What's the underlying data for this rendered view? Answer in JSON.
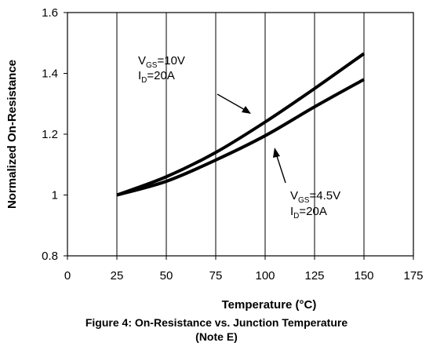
{
  "chart_data": {
    "type": "line",
    "xlabel": "Temperature (°C)",
    "ylabel": "Normalized On-Resistance",
    "xlim": [
      0,
      175
    ],
    "ylim": [
      0.8,
      1.6
    ],
    "x_ticks": [
      "0",
      "25",
      "50",
      "75",
      "100",
      "125",
      "150",
      "175"
    ],
    "y_ticks": [
      "0.8",
      "1",
      "1.2",
      "1.4",
      "1.6"
    ],
    "grid": "vertical",
    "series": [
      {
        "name": "VGS=10V, ID=20A",
        "x": [
          25,
          50,
          75,
          100,
          125,
          150
        ],
        "y": [
          1.0,
          1.06,
          1.14,
          1.24,
          1.35,
          1.465
        ]
      },
      {
        "name": "VGS=4.5V, ID=20A",
        "x": [
          25,
          50,
          75,
          100,
          125,
          150
        ],
        "y": [
          1.0,
          1.045,
          1.115,
          1.195,
          1.29,
          1.38
        ]
      }
    ],
    "annotations": [
      {
        "line1_main": "V",
        "line1_sub": "GS",
        "line1_rest": "=10V",
        "line2_main": "I",
        "line2_sub": "D",
        "line2_rest": "=20A"
      },
      {
        "line1_main": "V",
        "line1_sub": "GS",
        "line1_rest": "=4.5V",
        "line2_main": "I",
        "line2_sub": "D",
        "line2_rest": "=20A"
      }
    ]
  },
  "caption": {
    "title": "Figure 4: On-Resistance vs. Junction Temperature",
    "note": "(Note E)"
  }
}
